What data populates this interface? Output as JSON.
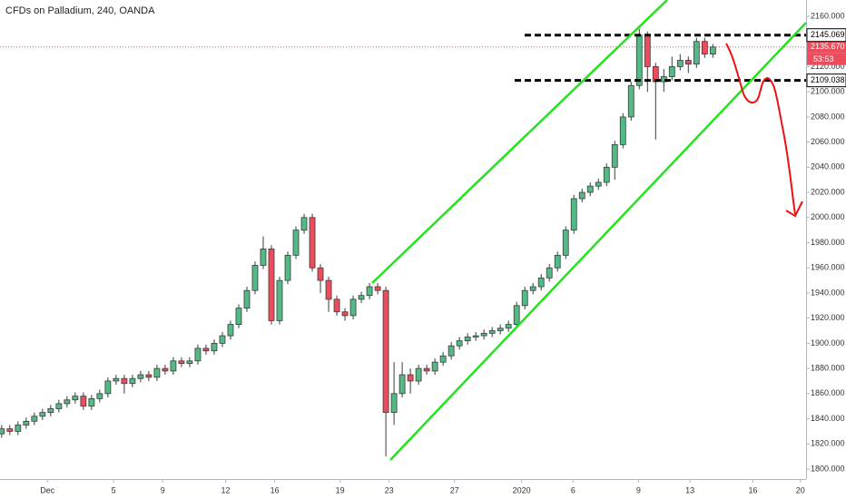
{
  "chart_data": {
    "type": "candlestick",
    "title": "CFDs on Palladium, 240, OANDA",
    "up_color": "#53b987",
    "down_color": "#eb4d5c",
    "open": [
      1828,
      1832,
      1830,
      1835,
      1838,
      1842,
      1845,
      1848,
      1852,
      1855,
      1858,
      1850,
      1856,
      1860,
      1870,
      1872,
      1868,
      1872,
      1875,
      1873,
      1880,
      1878,
      1886,
      1884,
      1886,
      1896,
      1894,
      1900,
      1906,
      1915,
      1928,
      1942,
      1962,
      1975,
      1918,
      1950,
      1970,
      1990,
      2000,
      1960,
      1950,
      1935,
      1925,
      1922,
      1935,
      1938,
      1945,
      1942,
      1845,
      1860,
      1875,
      1870,
      1880,
      1878,
      1885,
      1890,
      1898,
      1902,
      1905,
      1906,
      1908,
      1910,
      1912,
      1915,
      1930,
      1942,
      1945,
      1952,
      1960,
      1970,
      1990,
      2015,
      2020,
      2025,
      2028,
      2040,
      2058,
      2080,
      2105,
      2145,
      2120,
      2108,
      2112,
      2120,
      2125,
      2122,
      2140,
      2130
    ],
    "high": [
      1835,
      1835,
      1838,
      1841,
      1845,
      1848,
      1851,
      1855,
      1858,
      1861,
      1861,
      1859,
      1863,
      1873,
      1875,
      1875,
      1875,
      1878,
      1878,
      1883,
      1883,
      1889,
      1889,
      1889,
      1899,
      1899,
      1903,
      1909,
      1918,
      1931,
      1945,
      1965,
      1985,
      1978,
      1953,
      1973,
      1993,
      2003,
      2003,
      1963,
      1953,
      1938,
      1928,
      1938,
      1941,
      1948,
      1948,
      1945,
      1885,
      1885,
      1880,
      1883,
      1883,
      1888,
      1893,
      1901,
      1905,
      1908,
      1909,
      1911,
      1913,
      1915,
      1918,
      1933,
      1945,
      1948,
      1955,
      1963,
      1973,
      1993,
      2018,
      2023,
      2028,
      2031,
      2043,
      2061,
      2083,
      2108,
      2150,
      2148,
      2123,
      2118,
      2128,
      2130,
      2128,
      2143,
      2143,
      2138
    ],
    "low": [
      1825,
      1827,
      1827,
      1832,
      1835,
      1839,
      1842,
      1845,
      1849,
      1852,
      1847,
      1847,
      1853,
      1857,
      1867,
      1860,
      1865,
      1869,
      1870,
      1870,
      1875,
      1875,
      1881,
      1881,
      1883,
      1891,
      1891,
      1897,
      1903,
      1912,
      1925,
      1939,
      1959,
      1915,
      1915,
      1947,
      1967,
      1987,
      1957,
      1940,
      1925,
      1922,
      1918,
      1919,
      1932,
      1935,
      1939,
      1810,
      1835,
      1857,
      1860,
      1867,
      1875,
      1875,
      1882,
      1887,
      1895,
      1899,
      1902,
      1903,
      1905,
      1907,
      1909,
      1912,
      1927,
      1939,
      1942,
      1949,
      1957,
      1967,
      1987,
      2012,
      2017,
      2022,
      2025,
      2030,
      2055,
      2077,
      2102,
      2100,
      2062,
      2100,
      2109,
      2117,
      2115,
      2119,
      2127,
      2127
    ],
    "close": [
      1832,
      1830,
      1835,
      1838,
      1842,
      1845,
      1848,
      1852,
      1855,
      1858,
      1850,
      1856,
      1860,
      1870,
      1872,
      1868,
      1872,
      1875,
      1873,
      1880,
      1878,
      1886,
      1884,
      1886,
      1896,
      1894,
      1900,
      1906,
      1915,
      1928,
      1942,
      1962,
      1975,
      1918,
      1950,
      1970,
      1990,
      2000,
      1960,
      1950,
      1935,
      1925,
      1922,
      1935,
      1938,
      1945,
      1942,
      1845,
      1860,
      1875,
      1870,
      1880,
      1878,
      1885,
      1890,
      1898,
      1902,
      1905,
      1906,
      1908,
      1910,
      1912,
      1915,
      1930,
      1942,
      1945,
      1952,
      1960,
      1970,
      1990,
      2015,
      2020,
      2025,
      2028,
      2040,
      2058,
      2080,
      2105,
      2145,
      2120,
      2108,
      2112,
      2120,
      2125,
      2122,
      2140,
      2130,
      2135.67
    ],
    "xlim": [
      -0.2,
      98.4
    ],
    "xticks": [
      {
        "value": 5.6,
        "label": "Dec"
      },
      {
        "value": 13.7,
        "label": "5"
      },
      {
        "value": 19.7,
        "label": "9"
      },
      {
        "value": 27.4,
        "label": "12"
      },
      {
        "value": 33.4,
        "label": "16"
      },
      {
        "value": 41.4,
        "label": "19"
      },
      {
        "value": 47.4,
        "label": "23"
      },
      {
        "value": 55.4,
        "label": "27"
      },
      {
        "value": 63.6,
        "label": "2020"
      },
      {
        "value": 69.9,
        "label": "6"
      },
      {
        "value": 77.9,
        "label": "9"
      },
      {
        "value": 84.2,
        "label": "13"
      },
      {
        "value": 91.9,
        "label": "16"
      },
      {
        "value": 97.7,
        "label": "20"
      }
    ],
    "ylim": [
      1800,
      2160
    ],
    "yticks": [
      {
        "value": 1800,
        "label": "1800.000"
      },
      {
        "value": 1820,
        "label": "1820.000"
      },
      {
        "value": 1840,
        "label": "1840.000"
      },
      {
        "value": 1860,
        "label": "1860.000"
      },
      {
        "value": 1880,
        "label": "1880.000"
      },
      {
        "value": 1900,
        "label": "1900.000"
      },
      {
        "value": 1920,
        "label": "1920.000"
      },
      {
        "value": 1940,
        "label": "1940.000"
      },
      {
        "value": 1960,
        "label": "1960.000"
      },
      {
        "value": 1980,
        "label": "1980.000"
      },
      {
        "value": 2000,
        "label": "2000.000"
      },
      {
        "value": 2020,
        "label": "2020.000"
      },
      {
        "value": 2040,
        "label": "2040.000"
      },
      {
        "value": 2060,
        "label": "2060.000"
      },
      {
        "value": 2080,
        "label": "2080.000"
      },
      {
        "value": 2100,
        "label": "2100.000"
      },
      {
        "value": 2120,
        "label": "2120.000"
      },
      {
        "value": 2160,
        "label": "2160.000"
      }
    ],
    "grid": false,
    "levels": [
      2145.069,
      2109.038
    ],
    "last_price": {
      "value": 2135.67,
      "label": "2135.670"
    },
    "countdown": "53:53"
  }
}
